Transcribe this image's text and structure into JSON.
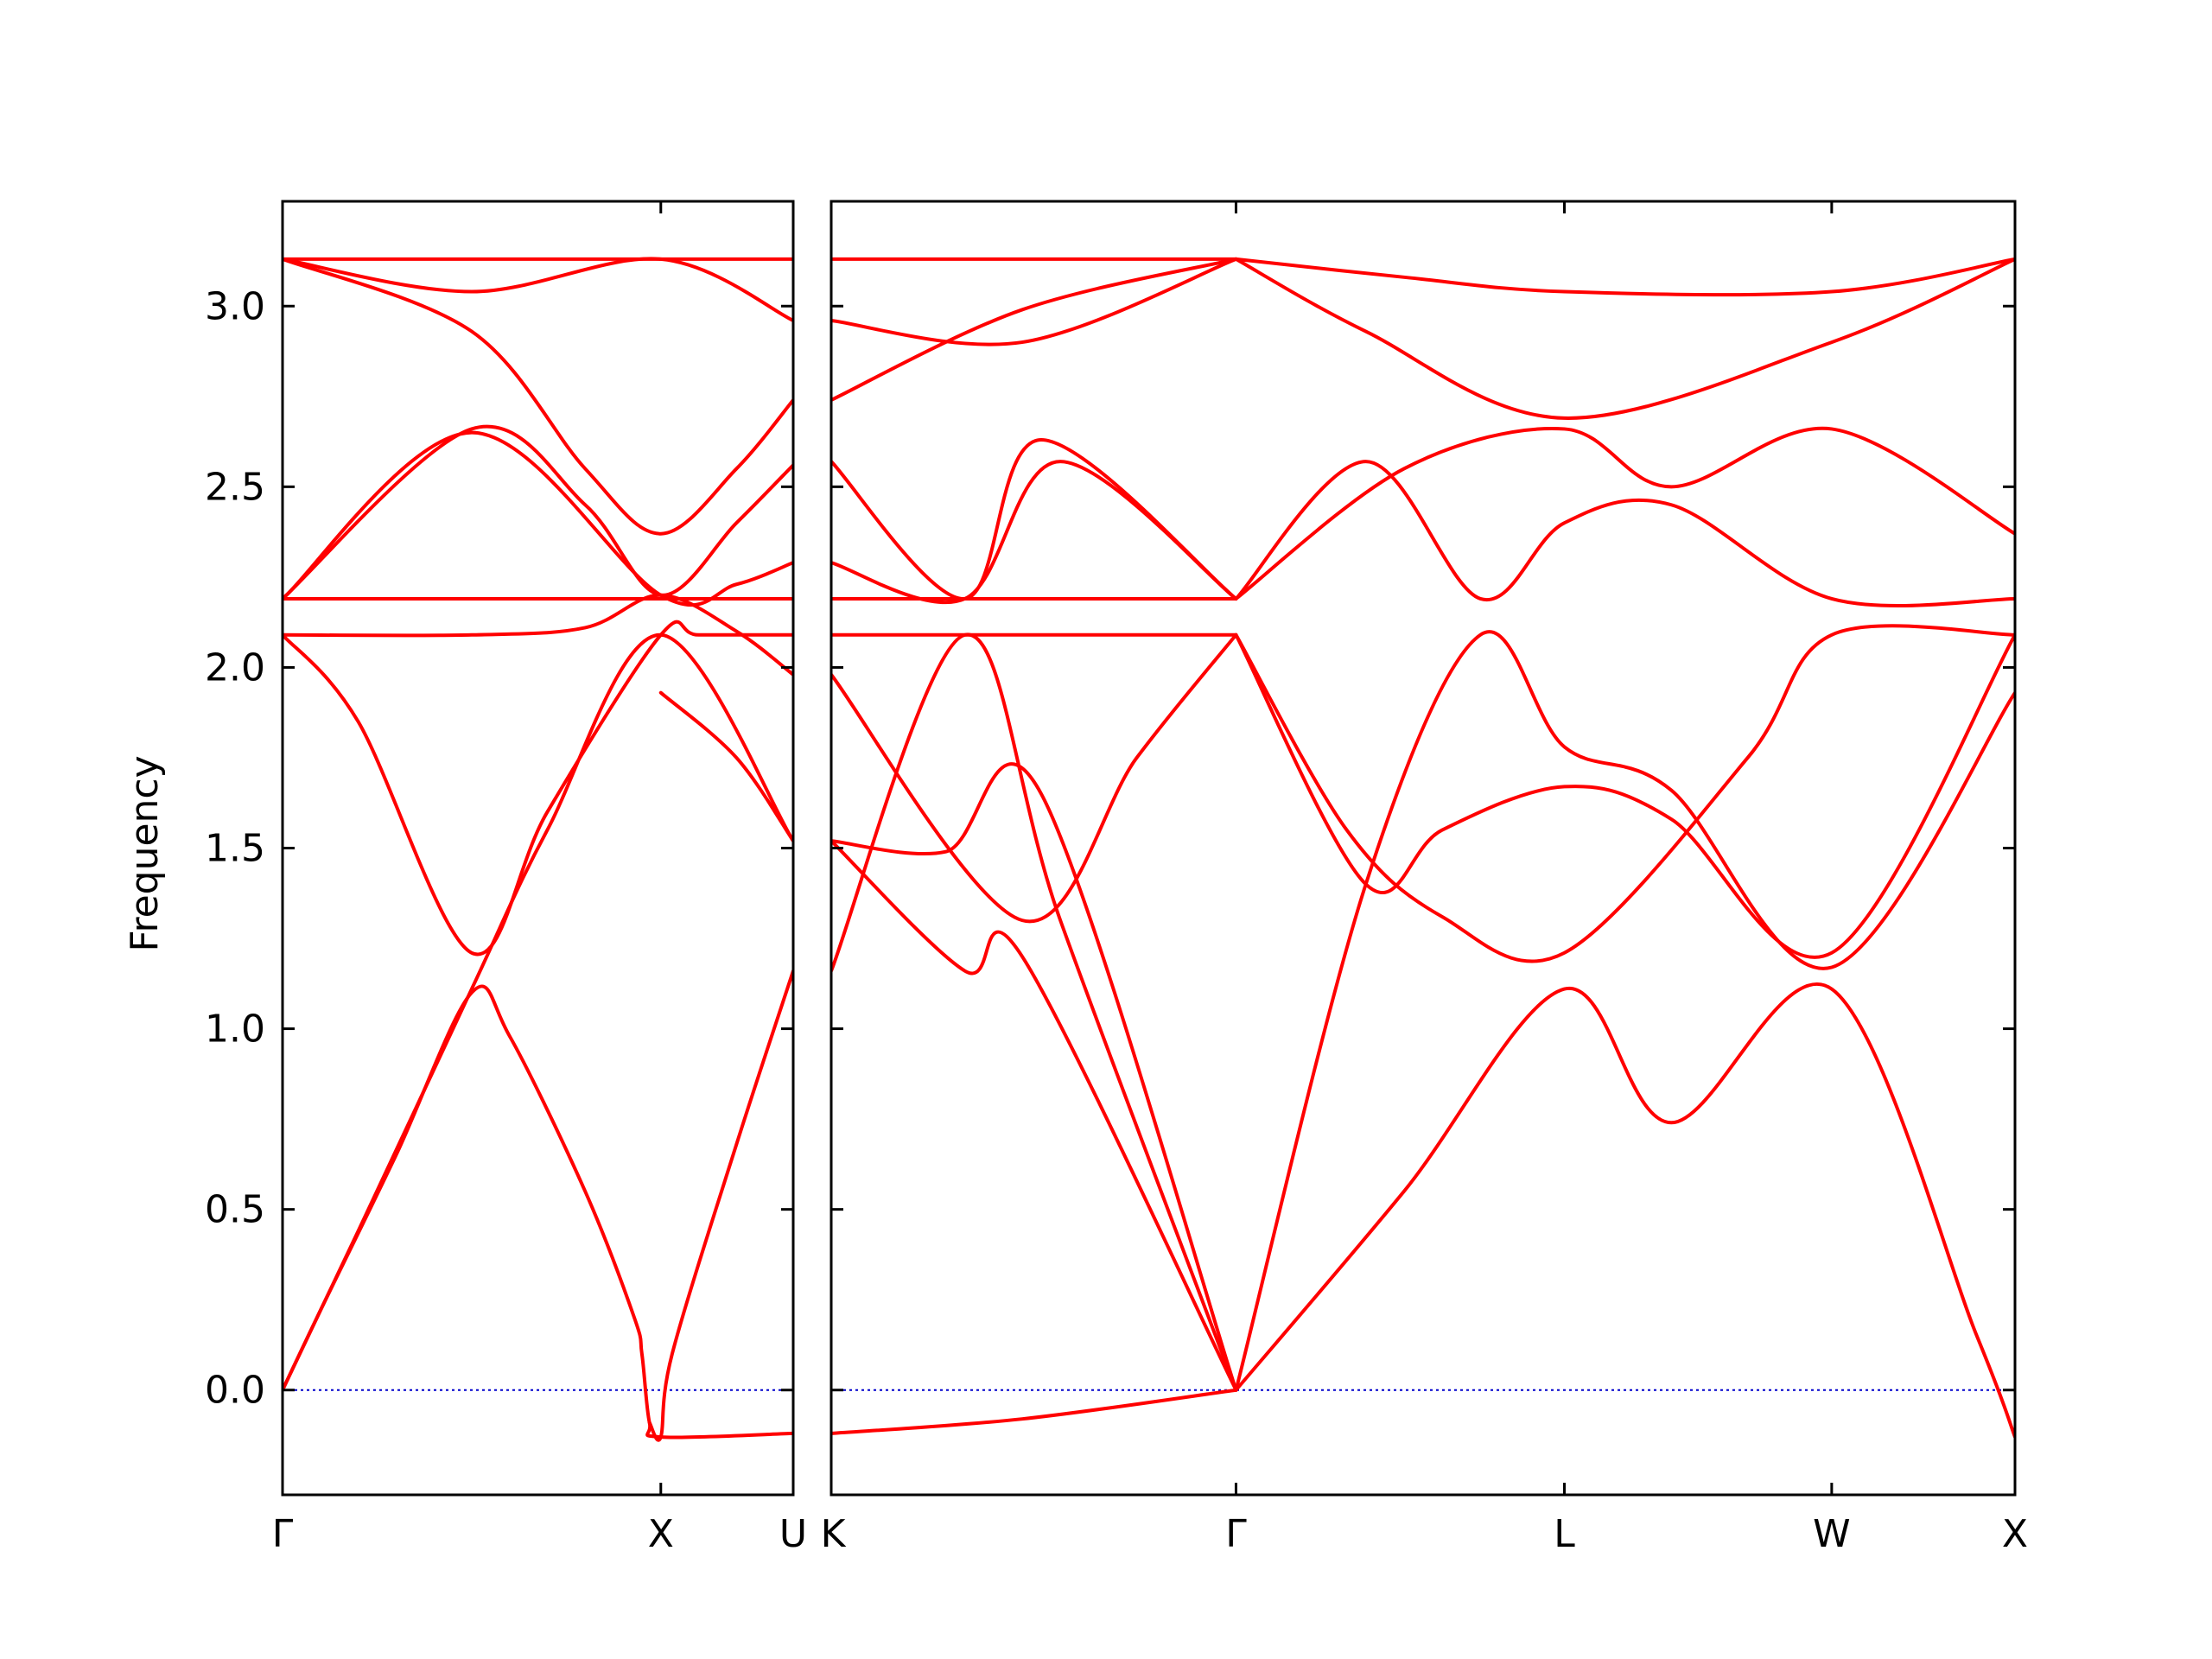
{
  "chart_data": {
    "type": "line",
    "ylabel": "Frequency",
    "ylim": [
      -0.29,
      3.29
    ],
    "yticks": [
      "0.0",
      "0.5",
      "1.0",
      "1.5",
      "2.0",
      "2.5",
      "3.0"
    ],
    "ytick_values": [
      0.0,
      0.5,
      1.0,
      1.5,
      2.0,
      2.5,
      3.0
    ],
    "line_color": "#ff0000",
    "zero_line_color": "#0000cc",
    "segments": [
      {
        "path": "Γ–X–U",
        "xlim": [
          0,
          1.35
        ],
        "xticks": [
          {
            "x": 0,
            "label": "Γ"
          },
          {
            "x": 1.0,
            "label": "X"
          },
          {
            "x": 1.35,
            "label": "U"
          }
        ],
        "bands": [
          [
            [
              0,
              0
            ],
            [
              0.1,
              0.22
            ],
            [
              0.3,
              0.65
            ],
            [
              0.5,
              1.1
            ],
            [
              0.6,
              0.98
            ],
            [
              0.8,
              0.55
            ],
            [
              0.93,
              0.2
            ],
            [
              0.95,
              0.1
            ],
            [
              0.97,
              -0.09
            ],
            [
              1.0,
              -0.13
            ],
            [
              1.35,
              -0.12
            ]
          ],
          [
            [
              0,
              0
            ],
            [
              0.2,
              0.44
            ],
            [
              0.5,
              1.11
            ],
            [
              0.7,
              1.55
            ],
            [
              1.0,
              2.09
            ],
            [
              1.35,
              1.52
            ]
          ],
          [
            [
              0,
              2.09
            ],
            [
              0.2,
              1.85
            ],
            [
              0.5,
              1.21
            ],
            [
              0.7,
              1.6
            ],
            [
              1.0,
              2.09
            ],
            [
              1.1,
              2.09
            ],
            [
              1.35,
              2.09
            ]
          ],
          [
            [
              0,
              2.09
            ],
            [
              0.5,
              2.09
            ],
            [
              0.8,
              2.11
            ],
            [
              1.0,
              2.2
            ],
            [
              1.2,
              2.1
            ],
            [
              1.35,
              1.98
            ]
          ],
          [
            [
              0,
              2.19
            ],
            [
              0.5,
              2.19
            ],
            [
              1.0,
              2.19
            ],
            [
              1.35,
              2.19
            ]
          ],
          [
            [
              0,
              2.19
            ],
            [
              0.5,
              2.66
            ],
            [
              0.8,
              2.45
            ],
            [
              1.0,
              2.2
            ],
            [
              1.2,
              2.4
            ],
            [
              1.35,
              2.56
            ]
          ],
          [
            [
              0,
              2.19
            ],
            [
              0.5,
              2.65
            ],
            [
              1.0,
              2.2
            ],
            [
              1.2,
              2.23
            ],
            [
              1.35,
              2.29
            ]
          ],
          [
            [
              0,
              3.13
            ],
            [
              0.5,
              2.93
            ],
            [
              0.8,
              2.55
            ],
            [
              1.0,
              2.37
            ],
            [
              1.2,
              2.55
            ],
            [
              1.35,
              2.74
            ]
          ],
          [
            [
              0,
              3.13
            ],
            [
              0.5,
              3.04
            ],
            [
              1.0,
              3.13
            ],
            [
              1.35,
              2.96
            ]
          ],
          [
            [
              0,
              3.13
            ],
            [
              1.0,
              3.13
            ],
            [
              1.35,
              3.13
            ]
          ],
          [
            [
              0.97,
              -0.09
            ],
            [
              1.0,
              -0.13
            ],
            [
              1.03,
              0.1
            ],
            [
              1.2,
              0.68
            ],
            [
              1.35,
              1.16
            ]
          ],
          [
            [
              1.0,
              1.93
            ],
            [
              1.2,
              1.75
            ],
            [
              1.35,
              1.52
            ]
          ]
        ]
      },
      {
        "path": "K–Γ–L–W–X",
        "xlim": [
          0,
          3.1
        ],
        "xticks": [
          {
            "x": 0,
            "label": "K"
          },
          {
            "x": 1.06,
            "label": "Γ"
          },
          {
            "x": 1.92,
            "label": "L"
          },
          {
            "x": 2.62,
            "label": "W"
          },
          {
            "x": 3.1,
            "label": "X"
          }
        ],
        "bands": [
          [
            [
              0,
              -0.12
            ],
            [
              0.5,
              -0.08
            ],
            [
              1.06,
              0
            ]
          ],
          [
            [
              0,
              1.16
            ],
            [
              0.35,
              2.09
            ],
            [
              0.6,
              1.3
            ],
            [
              1.06,
              0
            ]
          ],
          [
            [
              0,
              1.52
            ],
            [
              0.35,
              1.16
            ],
            [
              0.5,
              1.2
            ],
            [
              1.06,
              0
            ]
          ],
          [
            [
              0,
              1.98
            ],
            [
              0.5,
              1.3
            ],
            [
              0.8,
              1.75
            ],
            [
              1.06,
              2.09
            ]
          ],
          [
            [
              0,
              1.52
            ],
            [
              0.3,
              1.49
            ],
            [
              0.55,
              1.65
            ],
            [
              1.06,
              0
            ]
          ],
          [
            [
              0,
              2.09
            ],
            [
              1.06,
              2.09
            ]
          ],
          [
            [
              0,
              2.19
            ],
            [
              1.06,
              2.19
            ]
          ],
          [
            [
              0,
              2.29
            ],
            [
              0.35,
              2.19
            ],
            [
              0.6,
              2.57
            ],
            [
              1.06,
              2.19
            ]
          ],
          [
            [
              0,
              2.57
            ],
            [
              0.35,
              2.19
            ],
            [
              0.55,
              2.63
            ],
            [
              1.06,
              2.19
            ]
          ],
          [
            [
              0,
              2.74
            ],
            [
              0.5,
              2.99
            ],
            [
              1.06,
              3.13
            ]
          ],
          [
            [
              0,
              2.96
            ],
            [
              0.5,
              2.9
            ],
            [
              1.06,
              3.13
            ]
          ],
          [
            [
              0,
              3.13
            ],
            [
              1.06,
              3.13
            ]
          ],
          [
            [
              1.06,
              0
            ],
            [
              1.4,
              1.4
            ],
            [
              1.7,
              2.09
            ],
            [
              1.92,
              1.78
            ],
            [
              2.2,
              1.66
            ],
            [
              2.62,
              1.17
            ],
            [
              3.1,
              1.93
            ]
          ],
          [
            [
              1.06,
              0
            ],
            [
              1.5,
              0.55
            ],
            [
              1.92,
              1.11
            ],
            [
              2.2,
              0.74
            ],
            [
              2.62,
              1.11
            ],
            [
              3.0,
              0.15
            ],
            [
              3.1,
              -0.13
            ]
          ],
          [
            [
              1.06,
              2.09
            ],
            [
              1.35,
              1.55
            ],
            [
              1.6,
              1.31
            ],
            [
              1.92,
              1.21
            ],
            [
              2.4,
              1.75
            ],
            [
              2.62,
              2.09
            ],
            [
              3.1,
              2.09
            ]
          ],
          [
            [
              1.06,
              2.09
            ],
            [
              1.4,
              1.4
            ],
            [
              1.6,
              1.55
            ],
            [
              1.92,
              1.67
            ],
            [
              2.2,
              1.58
            ],
            [
              2.62,
              1.21
            ],
            [
              3.1,
              2.09
            ]
          ],
          [
            [
              1.06,
              2.19
            ],
            [
              1.4,
              2.57
            ],
            [
              1.7,
              2.19
            ],
            [
              1.92,
              2.4
            ],
            [
              2.2,
              2.45
            ],
            [
              2.62,
              2.19
            ],
            [
              3.1,
              2.19
            ]
          ],
          [
            [
              1.06,
              2.19
            ],
            [
              1.5,
              2.55
            ],
            [
              1.92,
              2.66
            ],
            [
              2.2,
              2.5
            ],
            [
              2.62,
              2.66
            ],
            [
              3.1,
              2.37
            ]
          ],
          [
            [
              1.06,
              3.13
            ],
            [
              1.4,
              2.93
            ],
            [
              1.92,
              2.69
            ],
            [
              2.62,
              2.9
            ],
            [
              3.1,
              3.13
            ]
          ],
          [
            [
              1.06,
              3.13
            ],
            [
              1.5,
              3.08
            ],
            [
              1.92,
              3.04
            ],
            [
              2.62,
              3.04
            ],
            [
              3.1,
              3.13
            ]
          ]
        ]
      }
    ]
  }
}
